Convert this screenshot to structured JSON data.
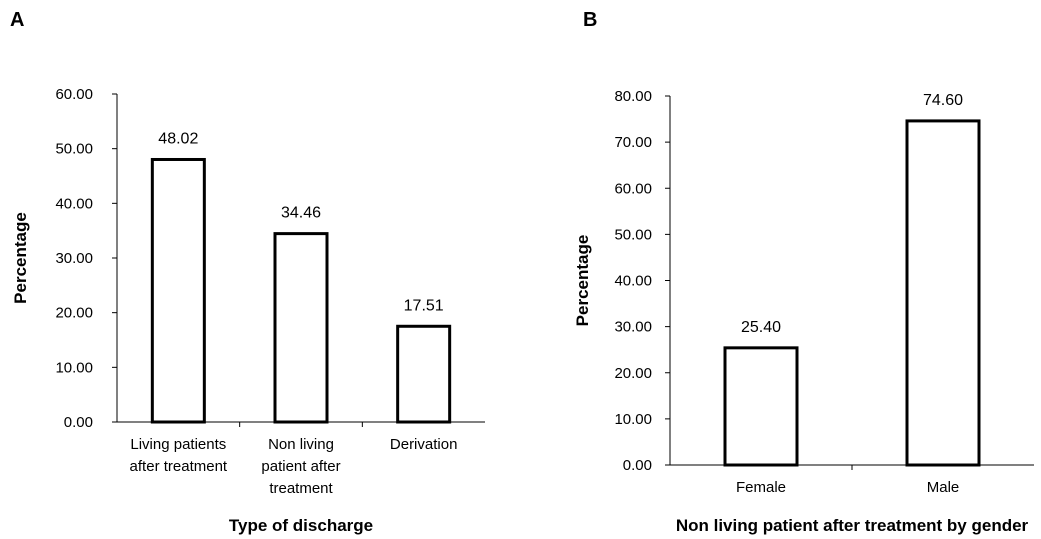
{
  "chart_data": [
    {
      "panel": "A",
      "type": "bar",
      "categories": [
        [
          "Living patients",
          "after treatment"
        ],
        [
          "Non living",
          "patient after",
          "treatment"
        ],
        [
          "Derivation"
        ]
      ],
      "values": [
        48.02,
        34.46,
        17.51
      ],
      "data_labels": [
        "48.02",
        "34.46",
        "17.51"
      ],
      "xlabel": "Type of discharge",
      "ylabel": "Percentage",
      "ylim": [
        0,
        60
      ],
      "yticks": [
        "0.00",
        "10.00",
        "20.00",
        "30.00",
        "40.00",
        "50.00",
        "60.00"
      ],
      "grid": false,
      "bar_fill": "#ffffff",
      "bar_stroke": "#000000"
    },
    {
      "panel": "B",
      "type": "bar",
      "categories": [
        [
          "Female"
        ],
        [
          "Male"
        ]
      ],
      "values": [
        25.4,
        74.6
      ],
      "data_labels": [
        "25.40",
        "74.60"
      ],
      "xlabel": "Non living patient after treatment by gender",
      "ylabel": "Percentage",
      "ylim": [
        0,
        80
      ],
      "yticks": [
        "0.00",
        "10.00",
        "20.00",
        "30.00",
        "40.00",
        "50.00",
        "60.00",
        "70.00",
        "80.00"
      ],
      "grid": false,
      "bar_fill": "#ffffff",
      "bar_stroke": "#000000"
    }
  ]
}
